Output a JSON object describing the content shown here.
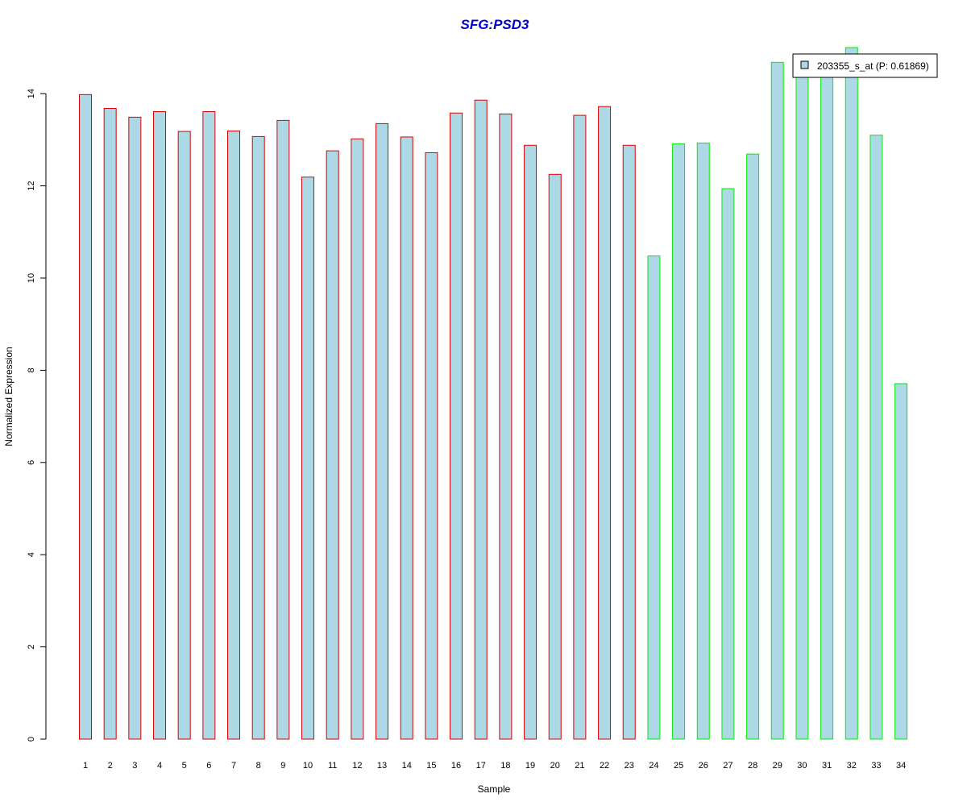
{
  "chart_data": {
    "type": "bar",
    "title": "SFG:PSD3",
    "xlabel": "Sample",
    "ylabel": "Normalized Expression",
    "ylim": [
      0,
      15
    ],
    "yticks": [
      0,
      2,
      4,
      6,
      8,
      10,
      12,
      14
    ],
    "grid": false,
    "legend_position": "top-right",
    "categories": [
      "1",
      "2",
      "3",
      "4",
      "5",
      "6",
      "7",
      "8",
      "9",
      "10",
      "11",
      "12",
      "13",
      "14",
      "15",
      "16",
      "17",
      "18",
      "19",
      "20",
      "21",
      "22",
      "23",
      "24",
      "25",
      "26",
      "27",
      "28",
      "29",
      "30",
      "31",
      "32",
      "33",
      "34"
    ],
    "series": [
      {
        "name": "203355_s_at (P: 0.61869)",
        "values": [
          13.98,
          13.68,
          13.49,
          13.61,
          13.18,
          13.61,
          13.19,
          13.07,
          13.42,
          12.19,
          12.76,
          13.02,
          13.35,
          13.06,
          12.72,
          13.58,
          13.86,
          13.56,
          12.88,
          12.25,
          13.53,
          13.72,
          12.88,
          10.48,
          12.91,
          12.93,
          11.94,
          12.69,
          14.68,
          14.5,
          14.4,
          15.0,
          13.1,
          7.71
        ]
      }
    ],
    "groups": [
      {
        "from": 1,
        "to": 23,
        "border_color": "#dd0000"
      },
      {
        "from": 24,
        "to": 34,
        "border_color": "#00ee00"
      }
    ],
    "colors": {
      "bar_fill": "#add8e6",
      "title": "#0000cc",
      "axis": "#000000"
    }
  }
}
